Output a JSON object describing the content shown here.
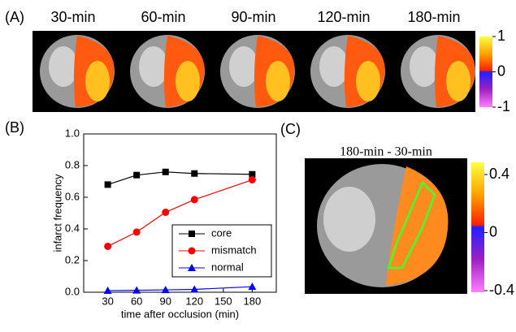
{
  "panel_a": {
    "label": "(A)",
    "titles": [
      "30-min",
      "60-min",
      "90-min",
      "120-min",
      "180-min"
    ],
    "colorbar_ticks": [
      1,
      0,
      -1
    ]
  },
  "panel_b": {
    "label": "(B)"
  },
  "panel_c": {
    "label": "(C)",
    "title": "180-min - 30-min",
    "colorbar_ticks": [
      0.4,
      0,
      -0.4
    ]
  },
  "chart_data": {
    "type": "line",
    "x_label": "time after occlusion (min)",
    "y_label": "infarct frequency",
    "x": [
      30,
      60,
      90,
      120,
      180
    ],
    "series": [
      {
        "name": "core",
        "color": "#000000",
        "marker": "square",
        "values": [
          0.68,
          0.74,
          0.76,
          0.75,
          0.745
        ]
      },
      {
        "name": "mismatch",
        "color": "#ff0000",
        "marker": "circle",
        "values": [
          0.29,
          0.38,
          0.505,
          0.585,
          0.71
        ]
      },
      {
        "name": "normal",
        "color": "#0000ff",
        "marker": "triangle",
        "values": [
          0.01,
          0.012,
          0.015,
          0.018,
          0.035
        ]
      }
    ],
    "xlim": [
      5,
      205
    ],
    "ylim": [
      0,
      1
    ],
    "xticks": [
      30,
      60,
      90,
      120,
      150,
      180
    ],
    "yticks": [
      {
        "value": 0,
        "label": "0.0"
      },
      0.2,
      0.4,
      0.6,
      0.8,
      {
        "value": 1,
        "label": "1.0"
      }
    ],
    "legend": "lower-right"
  }
}
